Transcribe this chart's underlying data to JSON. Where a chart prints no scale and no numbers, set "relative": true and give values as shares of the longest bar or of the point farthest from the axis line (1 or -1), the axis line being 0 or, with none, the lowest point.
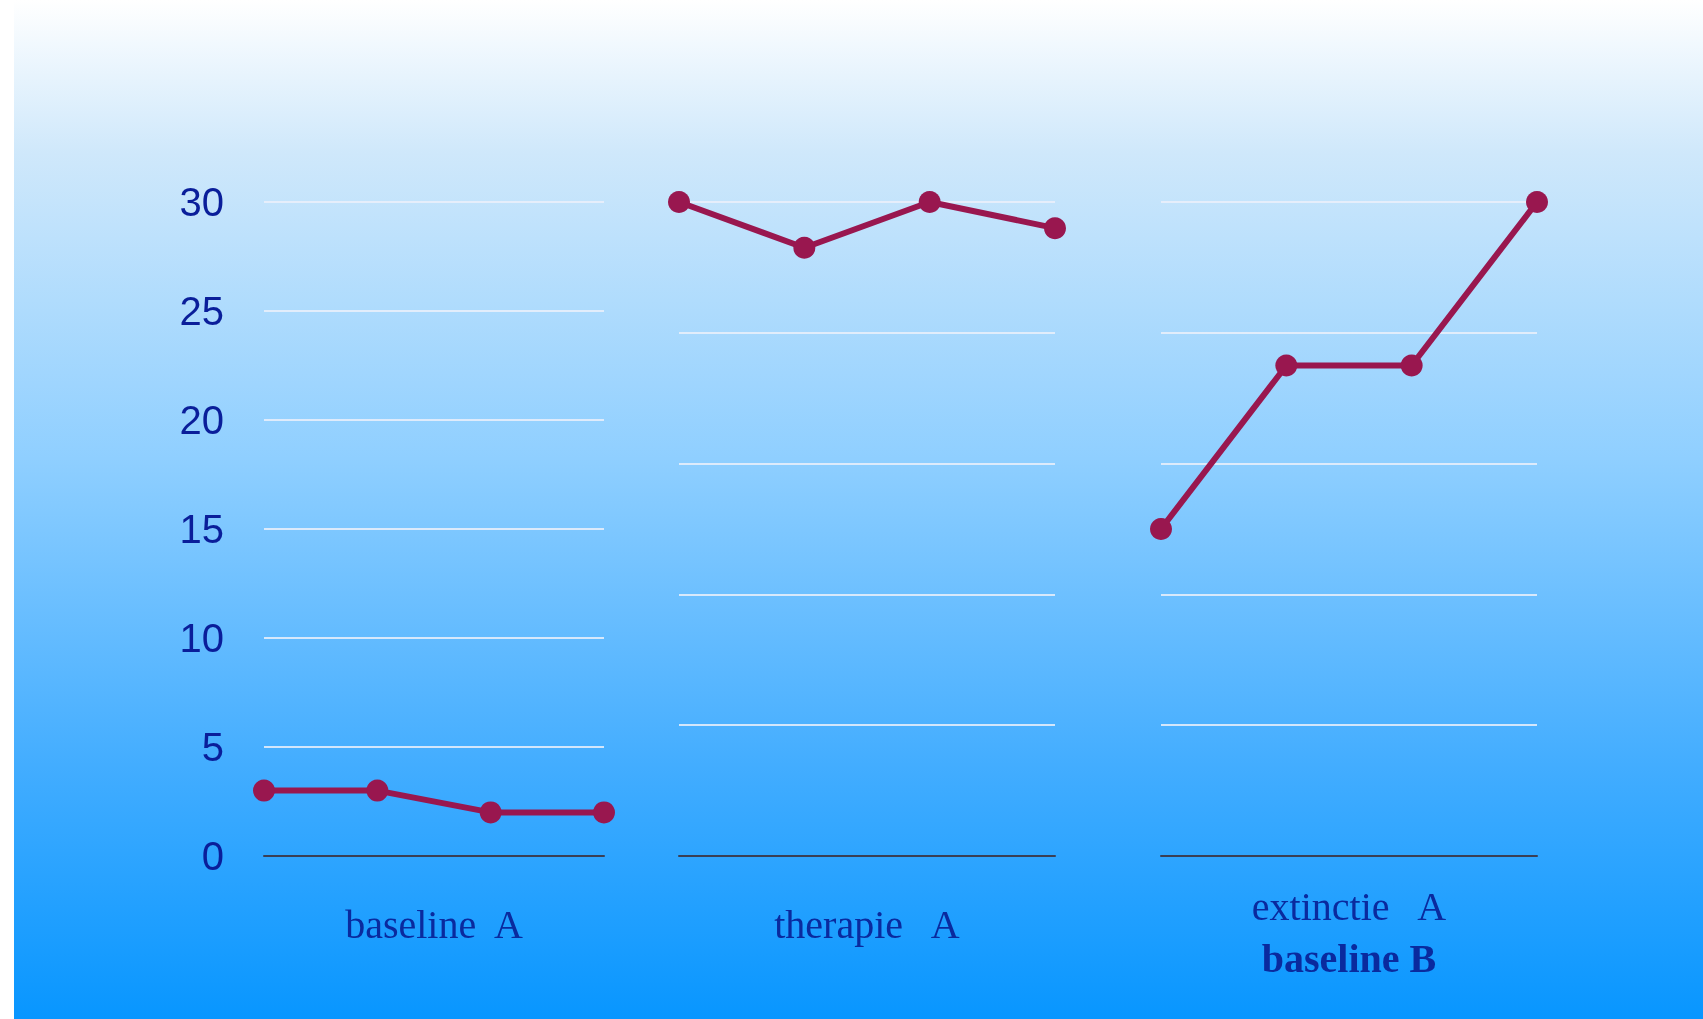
{
  "chart_data": [
    {
      "type": "line",
      "categories": [
        null,
        null,
        null,
        null
      ],
      "values": [
        3,
        3,
        2,
        2
      ],
      "color": "#99174f",
      "ylim": [
        0,
        30
      ],
      "yticks": [
        0,
        5,
        10,
        15,
        20,
        25,
        30
      ],
      "grid": "y",
      "marker": "circle",
      "xlabel": "baseline  A",
      "tick_labels": "y"
    },
    {
      "type": "line",
      "categories": [
        null,
        null,
        null,
        null
      ],
      "values": [
        1,
        0.93,
        1,
        0.96
      ],
      "color": "#99174f",
      "relative": true,
      "grid": "y",
      "marker": "circle",
      "xlabel": "therapie   A",
      "tick_labels": false
    },
    {
      "type": "line",
      "categories": [
        null,
        null,
        null,
        null
      ],
      "values": [
        0.5,
        0.75,
        0.75,
        1
      ],
      "color": "#99174f",
      "relative": true,
      "grid": "y",
      "marker": "circle",
      "xlabel": "extinctie   A",
      "tick_labels": false,
      "annotations": [
        "baseline B"
      ]
    }
  ]
}
